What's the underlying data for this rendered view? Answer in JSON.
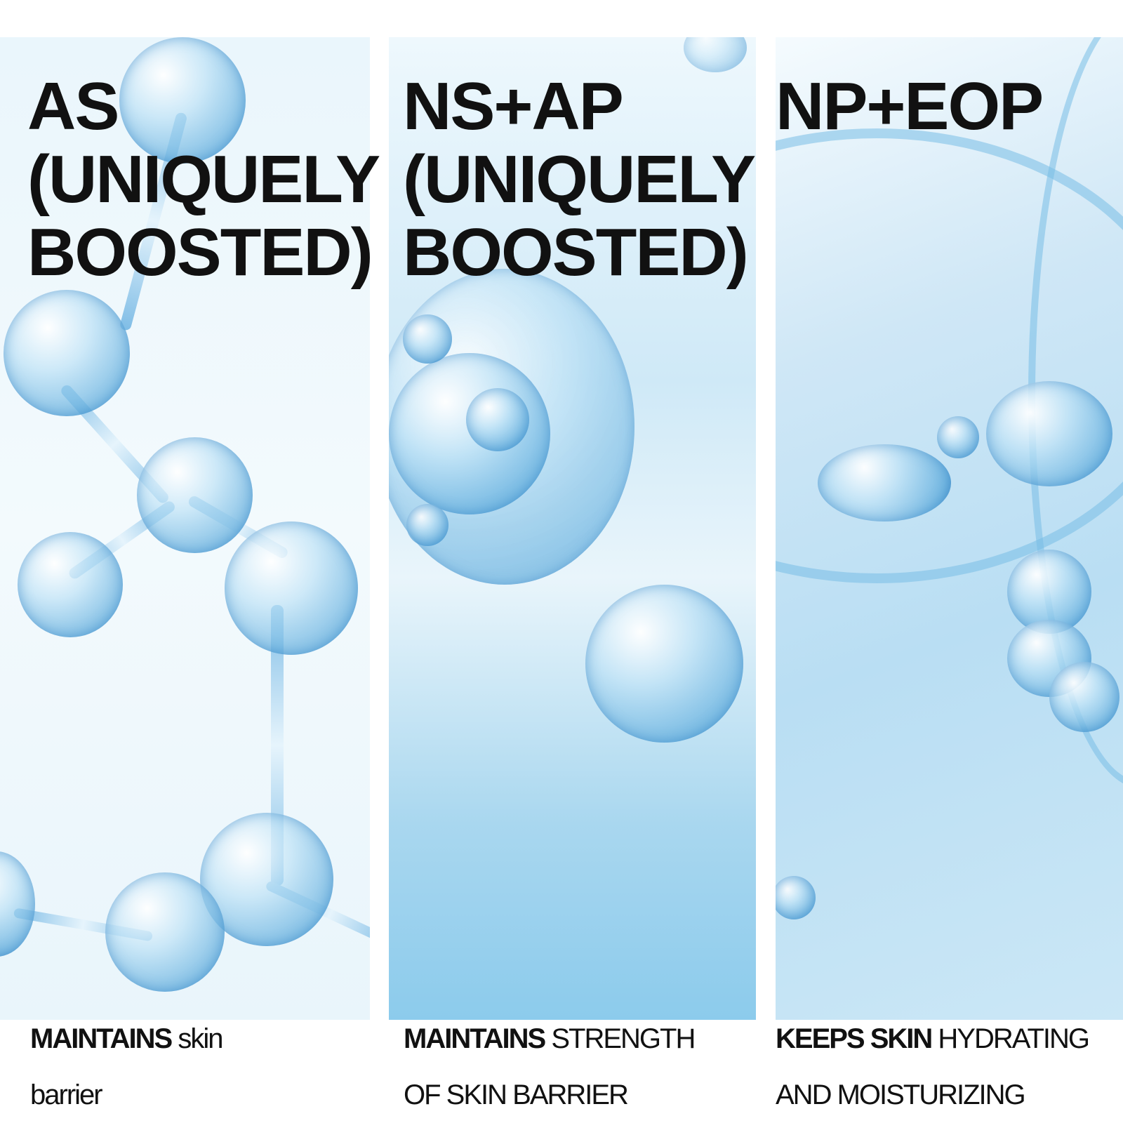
{
  "panels": [
    {
      "title_lines": [
        "AS",
        "(UNIQUELY",
        "BOOSTED)"
      ],
      "caption_bold": "MAINTAINS",
      "caption_rest": " skin",
      "caption_line2": "barrier"
    },
    {
      "title_lines": [
        "NS+AP",
        "(UNIQUELY",
        "BOOSTED)"
      ],
      "caption_bold": "MAINTAINS",
      "caption_rest": " STRENGTH",
      "caption_line2": "OF SKIN BARRIER"
    },
    {
      "title_lines": [
        "NP+EOP"
      ],
      "caption_bold": "KEEPS SKIN",
      "caption_rest": " HYDRATING",
      "caption_line2": "AND MOISTURIZING"
    }
  ],
  "colors": {
    "text": "#111111",
    "accent_blue": "#5aaadc"
  }
}
